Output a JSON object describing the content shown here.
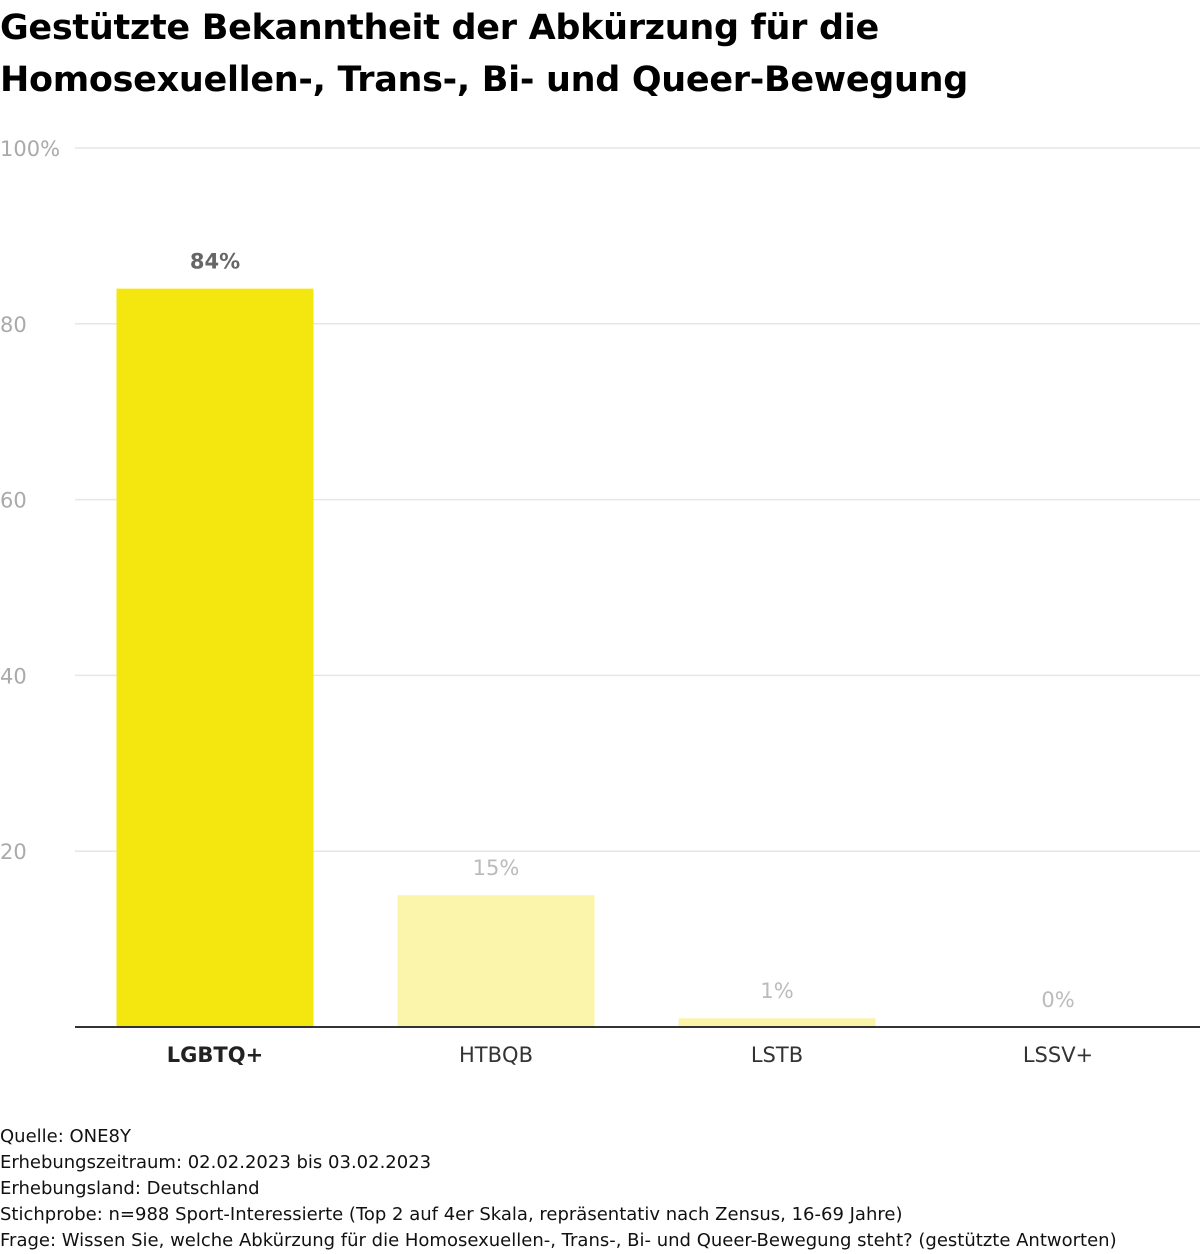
{
  "title": {
    "line1": "Gestützte Bekanntheit der Abkürzung für die",
    "line2": "Homosexuellen-, Trans-, Bi- und Queer-Bewegung"
  },
  "chart_data": {
    "type": "bar",
    "categories": [
      "LGBTQ+",
      "HTBQB",
      "LSTB",
      "LSSV+"
    ],
    "values": [
      84,
      15,
      1,
      0
    ],
    "value_labels": [
      "84%",
      "15%",
      "1%",
      "0%"
    ],
    "highlight_index": 0,
    "ylim": [
      0,
      100
    ],
    "yticks": [
      20,
      40,
      60,
      80,
      100
    ],
    "ytick_labels": [
      "20",
      "40",
      "60",
      "80",
      "100%"
    ],
    "grid": true,
    "xlabel": "",
    "ylabel": "",
    "colors": {
      "highlight_bar": "#f4e60f",
      "other_bar": "#fbf5ab",
      "highlight_label": "#666666",
      "other_label": "#bbbbbb",
      "gridline": "#e6e6e6",
      "axis": "#333333",
      "tick_label": "#aaaaaa"
    }
  },
  "footer": {
    "source": "Quelle: ONE8Y",
    "period": "Erhebungszeitraum: 02.02.2023 bis 03.02.2023",
    "country": "Erhebungsland: Deutschland",
    "sample": "Stichprobe: n=988 Sport-Interessierte (Top 2 auf 4er Skala, repräsentativ nach Zensus, 16-69 Jahre)",
    "question": "Frage: Wissen Sie, welche Abkürzung für die Homosexuellen-, Trans-, Bi- und Queer-Bewegung steht? (gestützte Antworten)"
  }
}
